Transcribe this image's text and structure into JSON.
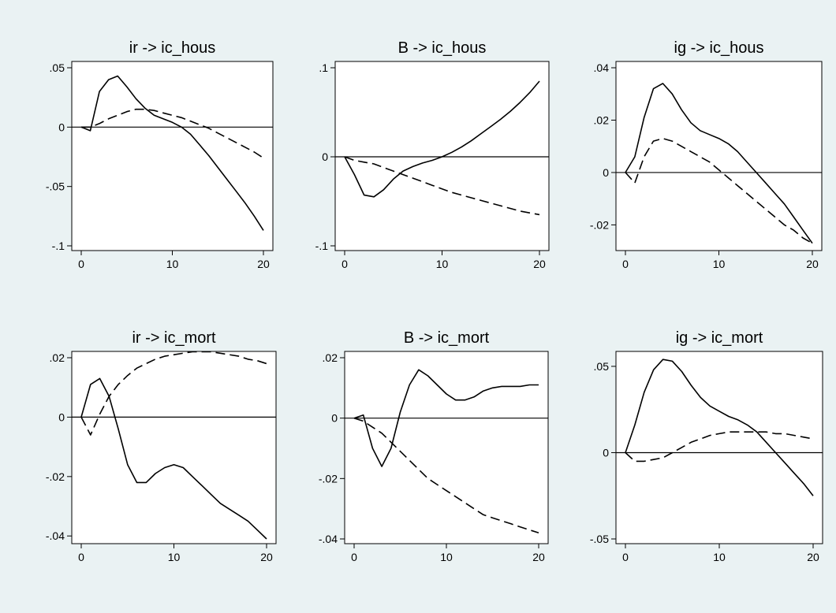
{
  "chart_data": [
    {
      "type": "line",
      "title": "ir -> ic_hous",
      "xlim": [
        0,
        20
      ],
      "ylim": [
        -0.1,
        0.05
      ],
      "xticks": [
        0,
        10,
        20
      ],
      "xtick_labels": [
        "0",
        "10",
        "20"
      ],
      "yticks": [
        0.05,
        0,
        -0.05,
        -0.1
      ],
      "ytick_labels": [
        ".05",
        "0",
        "-.05",
        "-.1"
      ],
      "zero_line": true,
      "series": [
        {
          "style": "solid",
          "x": [
            0,
            1,
            2,
            3,
            4,
            5,
            6,
            7,
            8,
            9,
            10,
            11,
            12,
            13,
            14,
            15,
            16,
            17,
            18,
            19,
            20
          ],
          "y": [
            0,
            -0.003,
            0.03,
            0.04,
            0.043,
            0.034,
            0.024,
            0.016,
            0.01,
            0.007,
            0.004,
            0.0,
            -0.006,
            -0.015,
            -0.024,
            -0.034,
            -0.044,
            -0.054,
            -0.064,
            -0.075,
            -0.087
          ]
        },
        {
          "style": "dashed",
          "x": [
            0,
            1,
            2,
            3,
            4,
            5,
            6,
            7,
            8,
            9,
            10,
            11,
            12,
            13,
            14,
            15,
            16,
            17,
            18,
            19,
            20
          ],
          "y": [
            0,
            0.0,
            0.003,
            0.007,
            0.01,
            0.013,
            0.015,
            0.015,
            0.014,
            0.012,
            0.01,
            0.008,
            0.005,
            0.002,
            -0.001,
            -0.005,
            -0.009,
            -0.013,
            -0.017,
            -0.021,
            -0.026
          ]
        }
      ]
    },
    {
      "type": "line",
      "title": "B -> ic_hous",
      "xlim": [
        0,
        20
      ],
      "ylim": [
        -0.1,
        0.1
      ],
      "xticks": [
        0,
        10,
        20
      ],
      "xtick_labels": [
        "0",
        "10",
        "20"
      ],
      "yticks": [
        0.1,
        0,
        -0.1
      ],
      "ytick_labels": [
        ".1",
        "0",
        "-.1"
      ],
      "zero_line": true,
      "series": [
        {
          "style": "solid",
          "x": [
            0,
            1,
            2,
            3,
            4,
            5,
            6,
            7,
            8,
            9,
            10,
            11,
            12,
            13,
            14,
            15,
            16,
            17,
            18,
            19,
            20
          ],
          "y": [
            0,
            -0.02,
            -0.043,
            -0.045,
            -0.037,
            -0.025,
            -0.016,
            -0.011,
            -0.007,
            -0.004,
            0.0,
            0.005,
            0.011,
            0.018,
            0.026,
            0.034,
            0.042,
            0.051,
            0.061,
            0.072,
            0.085
          ]
        },
        {
          "style": "dashed",
          "x": [
            0,
            1,
            2,
            3,
            4,
            5,
            6,
            7,
            8,
            9,
            10,
            11,
            12,
            13,
            14,
            15,
            16,
            17,
            18,
            19,
            20
          ],
          "y": [
            0,
            -0.004,
            -0.006,
            -0.008,
            -0.012,
            -0.016,
            -0.02,
            -0.024,
            -0.028,
            -0.032,
            -0.036,
            -0.04,
            -0.043,
            -0.046,
            -0.049,
            -0.052,
            -0.055,
            -0.058,
            -0.061,
            -0.063,
            -0.065
          ]
        }
      ]
    },
    {
      "type": "line",
      "title": "ig -> ic_hous",
      "xlim": [
        0,
        20
      ],
      "ylim": [
        -0.028,
        0.04
      ],
      "xticks": [
        0,
        10,
        20
      ],
      "xtick_labels": [
        "0",
        "10",
        "20"
      ],
      "yticks": [
        0.04,
        0.02,
        0,
        -0.02
      ],
      "ytick_labels": [
        ".04",
        ".02",
        "0",
        "-.02"
      ],
      "zero_line": true,
      "series": [
        {
          "style": "solid",
          "x": [
            0,
            1,
            2,
            3,
            4,
            5,
            6,
            7,
            8,
            9,
            10,
            11,
            12,
            13,
            14,
            15,
            16,
            17,
            18,
            19,
            20
          ],
          "y": [
            0,
            0.006,
            0.021,
            0.032,
            0.034,
            0.03,
            0.024,
            0.019,
            0.016,
            0.0145,
            0.013,
            0.011,
            0.008,
            0.004,
            0.0,
            -0.004,
            -0.008,
            -0.012,
            -0.017,
            -0.022,
            -0.027
          ]
        },
        {
          "style": "dashed",
          "x": [
            0,
            1,
            2,
            3,
            4,
            5,
            6,
            7,
            8,
            9,
            10,
            11,
            12,
            13,
            14,
            15,
            16,
            17,
            18,
            19,
            20
          ],
          "y": [
            0,
            -0.004,
            0.006,
            0.012,
            0.013,
            0.012,
            0.01,
            0.008,
            0.006,
            0.004,
            0.001,
            -0.002,
            -0.005,
            -0.008,
            -0.011,
            -0.014,
            -0.017,
            -0.02,
            -0.022,
            -0.025,
            -0.027
          ]
        }
      ]
    },
    {
      "type": "line",
      "title": "ir -> ic_mort",
      "xlim": [
        0,
        20
      ],
      "ylim": [
        -0.041,
        0.02
      ],
      "xticks": [
        0,
        10,
        20
      ],
      "xtick_labels": [
        "0",
        "10",
        "20"
      ],
      "yticks": [
        0.02,
        0,
        -0.02,
        -0.04
      ],
      "ytick_labels": [
        ".02",
        "0",
        "-.02",
        "-.04"
      ],
      "zero_line": true,
      "series": [
        {
          "style": "solid",
          "x": [
            0,
            1,
            2,
            3,
            4,
            5,
            6,
            7,
            8,
            9,
            10,
            11,
            12,
            13,
            14,
            15,
            16,
            17,
            18,
            19,
            20
          ],
          "y": [
            0,
            0.011,
            0.013,
            0.007,
            -0.004,
            -0.016,
            -0.022,
            -0.022,
            -0.019,
            -0.017,
            -0.016,
            -0.017,
            -0.02,
            -0.023,
            -0.026,
            -0.029,
            -0.031,
            -0.033,
            -0.035,
            -0.038,
            -0.041
          ]
        },
        {
          "style": "dashed",
          "x": [
            0,
            1,
            2,
            3,
            4,
            5,
            6,
            7,
            8,
            9,
            10,
            11,
            12,
            13,
            14,
            15,
            16,
            17,
            18,
            19,
            20
          ],
          "y": [
            0,
            -0.006,
            0.001,
            0.007,
            0.011,
            0.014,
            0.0165,
            0.018,
            0.0195,
            0.0205,
            0.021,
            0.0215,
            0.022,
            0.022,
            0.022,
            0.0215,
            0.021,
            0.0205,
            0.0195,
            0.019,
            0.018
          ]
        }
      ]
    },
    {
      "type": "line",
      "title": "B -> ic_mort",
      "xlim": [
        0,
        20
      ],
      "ylim": [
        -0.04,
        0.02
      ],
      "xticks": [
        0,
        10,
        20
      ],
      "xtick_labels": [
        "0",
        "10",
        "20"
      ],
      "yticks": [
        0.02,
        0,
        -0.02,
        -0.04
      ],
      "ytick_labels": [
        ".02",
        "0",
        "-.02",
        "-.04"
      ],
      "zero_line": true,
      "series": [
        {
          "style": "solid",
          "x": [
            0,
            1,
            2,
            3,
            4,
            5,
            6,
            7,
            8,
            9,
            10,
            11,
            12,
            13,
            14,
            15,
            16,
            17,
            18,
            19,
            20
          ],
          "y": [
            0,
            0.001,
            -0.01,
            -0.016,
            -0.01,
            0.002,
            0.011,
            0.016,
            0.014,
            0.011,
            0.008,
            0.006,
            0.006,
            0.007,
            0.009,
            0.01,
            0.0105,
            0.0105,
            0.0105,
            0.011,
            0.011
          ]
        },
        {
          "style": "dashed",
          "x": [
            0,
            1,
            2,
            3,
            4,
            5,
            6,
            7,
            8,
            9,
            10,
            11,
            12,
            13,
            14,
            15,
            16,
            17,
            18,
            19,
            20
          ],
          "y": [
            0,
            -0.001,
            -0.003,
            -0.005,
            -0.008,
            -0.011,
            -0.014,
            -0.017,
            -0.02,
            -0.022,
            -0.024,
            -0.026,
            -0.028,
            -0.03,
            -0.032,
            -0.033,
            -0.034,
            -0.035,
            -0.036,
            -0.037,
            -0.038
          ]
        }
      ]
    },
    {
      "type": "line",
      "title": "ig -> ic_mort",
      "xlim": [
        0,
        20
      ],
      "ylim": [
        -0.05,
        0.055
      ],
      "xticks": [
        0,
        10,
        20
      ],
      "xtick_labels": [
        "0",
        "10",
        "20"
      ],
      "yticks": [
        0.05,
        0,
        -0.05
      ],
      "ytick_labels": [
        ".05",
        "0",
        "-.05"
      ],
      "zero_line": true,
      "series": [
        {
          "style": "solid",
          "x": [
            0,
            1,
            2,
            3,
            4,
            5,
            6,
            7,
            8,
            9,
            10,
            11,
            12,
            13,
            14,
            15,
            16,
            17,
            18,
            19,
            20
          ],
          "y": [
            0,
            0.016,
            0.035,
            0.048,
            0.054,
            0.053,
            0.047,
            0.039,
            0.032,
            0.027,
            0.024,
            0.021,
            0.019,
            0.016,
            0.012,
            0.006,
            0.0,
            -0.006,
            -0.012,
            -0.018,
            -0.025
          ]
        },
        {
          "style": "dashed",
          "x": [
            0,
            1,
            2,
            3,
            4,
            5,
            6,
            7,
            8,
            9,
            10,
            11,
            12,
            13,
            14,
            15,
            16,
            17,
            18,
            19,
            20
          ],
          "y": [
            0,
            -0.005,
            -0.005,
            -0.004,
            -0.003,
            0.0,
            0.003,
            0.006,
            0.008,
            0.01,
            0.011,
            0.012,
            0.012,
            0.012,
            0.012,
            0.012,
            0.011,
            0.011,
            0.01,
            0.009,
            0.008
          ]
        }
      ]
    }
  ]
}
